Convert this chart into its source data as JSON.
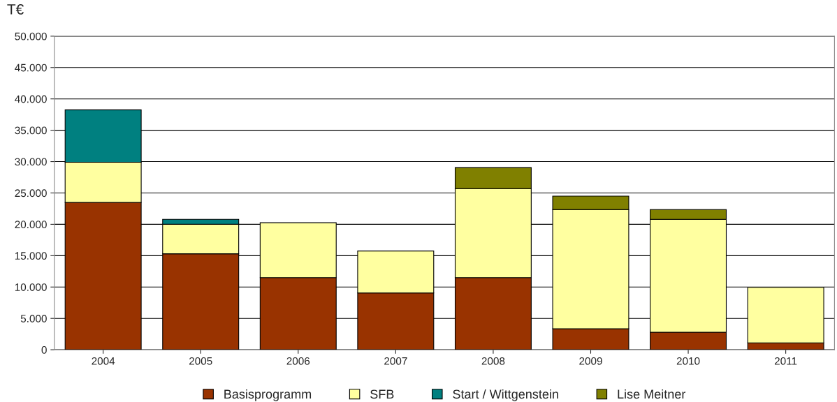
{
  "chart_data": {
    "type": "bar",
    "stacked": true,
    "ylabel": "T€",
    "categories": [
      "2004",
      "2005",
      "2006",
      "2007",
      "2008",
      "2009",
      "2010",
      "2011"
    ],
    "series": [
      {
        "name": "Basisprogramm",
        "color": "#993300",
        "values": [
          23500,
          15300,
          11500,
          9050,
          11500,
          3350,
          2800,
          1100
        ]
      },
      {
        "name": "SFB",
        "color": "#ffffa0",
        "values": [
          6400,
          4700,
          8750,
          6700,
          14200,
          19000,
          18000,
          8850
        ]
      },
      {
        "name": "Start / Wittgenstein",
        "color": "#008080",
        "values": [
          8350,
          800,
          0,
          0,
          0,
          0,
          0,
          0
        ]
      },
      {
        "name": "Lise Meitner",
        "color": "#808000",
        "values": [
          0,
          0,
          0,
          0,
          3350,
          2150,
          1550,
          0
        ]
      }
    ],
    "ylim": [
      0,
      50000
    ],
    "yticks": [
      0,
      {
        "value": 5000,
        "label": "5.000"
      },
      {
        "value": 10000,
        "label": "10.000"
      },
      {
        "value": 15000,
        "label": "15.000"
      },
      {
        "value": 20000,
        "label": "20.000"
      },
      {
        "value": 25000,
        "label": "25.000"
      },
      {
        "value": 30000,
        "label": "30.000"
      },
      {
        "value": 35000,
        "label": "35.000"
      },
      {
        "value": 40000,
        "label": "40.000"
      },
      {
        "value": 45000,
        "label": "45.000"
      },
      {
        "value": 50000,
        "label": "50.000"
      }
    ],
    "grid": "y",
    "legend": "bottom"
  }
}
